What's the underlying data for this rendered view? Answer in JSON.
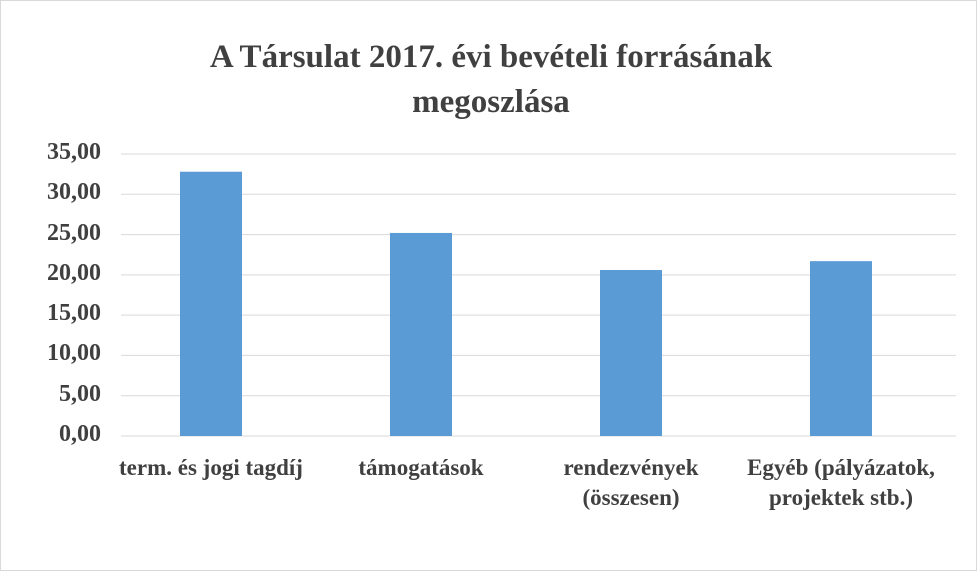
{
  "chart_data": {
    "type": "bar",
    "title": "A Társulat 2017. évi bevételi forrásának megoszlása",
    "categories": [
      "term. és jogi tagdíj",
      "támogatások",
      "rendezvények (összesen)",
      "Egyéb (pályázatok, projektek stb.)"
    ],
    "values": [
      32.8,
      25.2,
      20.6,
      21.7
    ],
    "color": "#5b9bd5",
    "ylim": [
      0,
      35
    ],
    "yticks": [
      {
        "value": 0,
        "label": "0,00"
      },
      {
        "value": 5,
        "label": "5,00"
      },
      {
        "value": 10,
        "label": "10,00"
      },
      {
        "value": 15,
        "label": "15,00"
      },
      {
        "value": 20,
        "label": "20,00"
      },
      {
        "value": 25,
        "label": "25,00"
      },
      {
        "value": 30,
        "label": "30,00"
      },
      {
        "value": 35,
        "label": "35,00"
      }
    ],
    "grid": true
  }
}
